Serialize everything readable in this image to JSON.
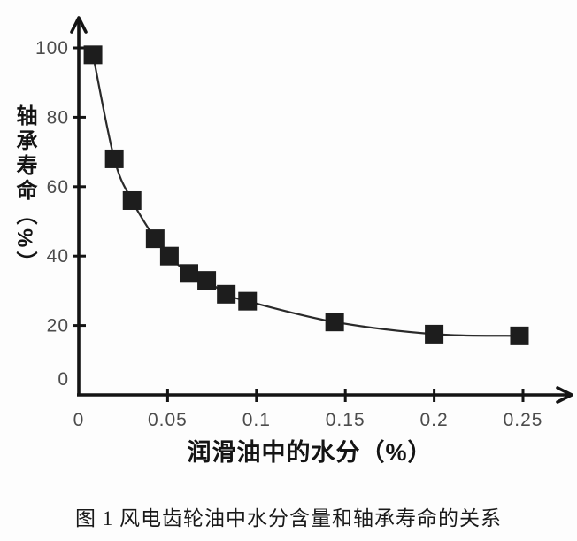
{
  "caption": {
    "text": "图 1 风电齿轮油中水分含量和轴承寿命的关系"
  },
  "chart_data": {
    "type": "scatter",
    "title": "",
    "xlabel": "润滑油中的水分（%）",
    "ylabel": "轴承寿命（%）",
    "x": [
      0.008,
      0.02,
      0.03,
      0.043,
      0.051,
      0.062,
      0.072,
      0.083,
      0.095,
      0.144,
      0.2,
      0.248
    ],
    "y": [
      98,
      68,
      56,
      45,
      40,
      35,
      33,
      29,
      27,
      21,
      17.5,
      17
    ],
    "series_name": "轴承寿命",
    "marker": "square",
    "line_style": "smooth",
    "xlim": [
      0,
      0.27
    ],
    "ylim": [
      0,
      108
    ],
    "x_ticks": [
      0,
      0.05,
      0.1,
      0.15,
      0.2,
      0.25
    ],
    "x_tick_labels": [
      "0",
      "0.05",
      "0.1",
      "0.15",
      "0.2",
      "0.25"
    ],
    "y_ticks": [
      0,
      20,
      40,
      60,
      80,
      100
    ],
    "y_tick_labels": [
      "0",
      "20",
      "40",
      "60",
      "80",
      "100"
    ],
    "grid": false,
    "legend": null,
    "colors": {
      "marker": "#1d1d1d",
      "line": "#2a2a2a",
      "axis": "#141414",
      "tick_label": "#4c4c4c",
      "background": "#fdfdfd"
    }
  }
}
